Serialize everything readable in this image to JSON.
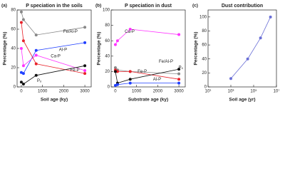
{
  "chart_data": [
    {
      "type": "line",
      "panel_label": "(a)",
      "title": "P speciation in the soils",
      "x_label": "Soil age (ky)",
      "y_label": "Percentage (%)",
      "x": [
        0,
        100,
        700,
        3000
      ],
      "series": [
        {
          "name": "Fe/Al-P",
          "color": "#888888",
          "values": [
            78,
            70,
            54,
            62
          ]
        },
        {
          "name": "Al-P",
          "color": "#1f3fff",
          "values": [
            15,
            14,
            38,
            46
          ]
        },
        {
          "name": "Ca-P",
          "color": "#ff33ff",
          "values": [
            40,
            22,
            33,
            17
          ]
        },
        {
          "name": "Fe-P",
          "color": "#e8222a",
          "values": [
            67,
            48,
            24,
            14
          ]
        },
        {
          "name": "Pₒ",
          "color": "#111111",
          "values": [
            5,
            3,
            12,
            22
          ]
        }
      ],
      "xlim": [
        -200,
        3300
      ],
      "xticks": [
        0,
        1000,
        2000,
        3000
      ],
      "ylim": [
        0,
        80
      ],
      "yticks": [
        0,
        20,
        40,
        60,
        80
      ]
    },
    {
      "type": "line",
      "panel_label": "(b)",
      "title": "P speciation in dust",
      "x_label": "Substrate age (ky)",
      "y_label": "Percentage (%)",
      "x": [
        0,
        100,
        700,
        3000
      ],
      "series": [
        {
          "name": "Ca-P",
          "color": "#ff33ff",
          "values": [
            55,
            60,
            75,
            68
          ]
        },
        {
          "name": "Fe/Al-P",
          "color": "#888888",
          "values": [
            25,
            22,
            20,
            17
          ]
        },
        {
          "name": "Fe-P",
          "color": "#e8222a",
          "values": [
            22,
            20,
            20,
            10
          ]
        },
        {
          "name": "Pₒ",
          "color": "#111111",
          "values": [
            20,
            5,
            10,
            23
          ]
        },
        {
          "name": "Al-P",
          "color": "#1f3fff",
          "values": [
            2,
            3,
            5,
            5
          ]
        }
      ],
      "xlim": [
        -200,
        3300
      ],
      "xticks": [
        0,
        1000,
        2000,
        3000
      ],
      "ylim": [
        0,
        100
      ],
      "yticks": [
        0,
        20,
        40,
        60,
        80,
        100
      ]
    },
    {
      "type": "line",
      "panel_label": "(c)",
      "title": "Dust contribution",
      "x_label": "Soil age (yr)",
      "y_label": "Percentage (%)",
      "x_scale": "log",
      "x": [
        1000,
        30000,
        400000,
        3000000
      ],
      "series": [
        {
          "color": "#6a6fd6",
          "values": [
            12,
            40,
            70,
            100
          ]
        }
      ],
      "xlim": [
        10,
        10000000
      ],
      "xticks": [
        {
          "value": 10,
          "label": "10¹"
        },
        {
          "value": 1000,
          "label": "10³"
        },
        {
          "value": 100000,
          "label": "10⁵"
        },
        {
          "value": 10000000,
          "label": "10⁷"
        }
      ],
      "ylim": [
        0,
        110
      ],
      "yticks": [
        0,
        20,
        40,
        60,
        80,
        100
      ]
    }
  ]
}
